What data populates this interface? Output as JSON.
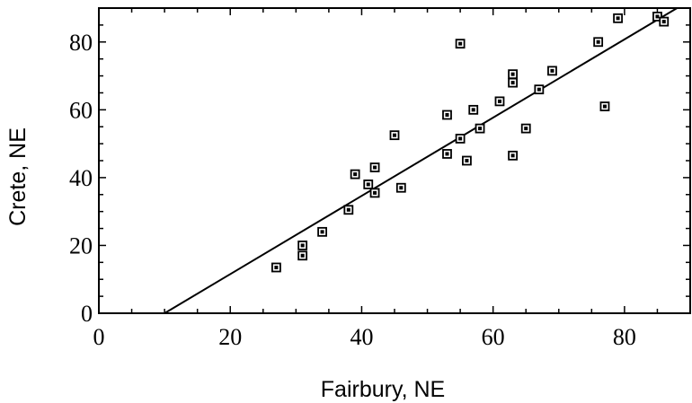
{
  "chart_data": {
    "type": "scatter",
    "xlabel": "Fairbury, NE",
    "ylabel": "Crete, NE",
    "xlim": [
      0,
      90
    ],
    "ylim": [
      0,
      90
    ],
    "x_ticks": [
      0,
      20,
      40,
      60,
      80
    ],
    "y_ticks": [
      0,
      20,
      40,
      60,
      80
    ],
    "x_tick_labels": [
      "0",
      "20",
      "40",
      "60",
      "80"
    ],
    "y_tick_labels": [
      "0",
      "20",
      "40",
      "60",
      "80"
    ],
    "grid": false,
    "series": [
      {
        "type": "scatter",
        "marker": "square",
        "points": [
          [
            27,
            13.5
          ],
          [
            31,
            17
          ],
          [
            31,
            20
          ],
          [
            34,
            24
          ],
          [
            38,
            30.5
          ],
          [
            39,
            41
          ],
          [
            41,
            38
          ],
          [
            42,
            35.5
          ],
          [
            42,
            43
          ],
          [
            45,
            52.5
          ],
          [
            46,
            37
          ],
          [
            53,
            47
          ],
          [
            53,
            58.5
          ],
          [
            55,
            51.5
          ],
          [
            55,
            79.5
          ],
          [
            56,
            45
          ],
          [
            57,
            60
          ],
          [
            58,
            54.5
          ],
          [
            61,
            62.5
          ],
          [
            63,
            46.5
          ],
          [
            63,
            68
          ],
          [
            63,
            70.5
          ],
          [
            65,
            54.5
          ],
          [
            67,
            66
          ],
          [
            69,
            71.5
          ],
          [
            76,
            80
          ],
          [
            77,
            61
          ],
          [
            79,
            87
          ],
          [
            85,
            87.5
          ],
          [
            86,
            86
          ]
        ]
      },
      {
        "type": "line",
        "points": [
          [
            10,
            0
          ],
          [
            88,
            90
          ]
        ]
      }
    ]
  }
}
